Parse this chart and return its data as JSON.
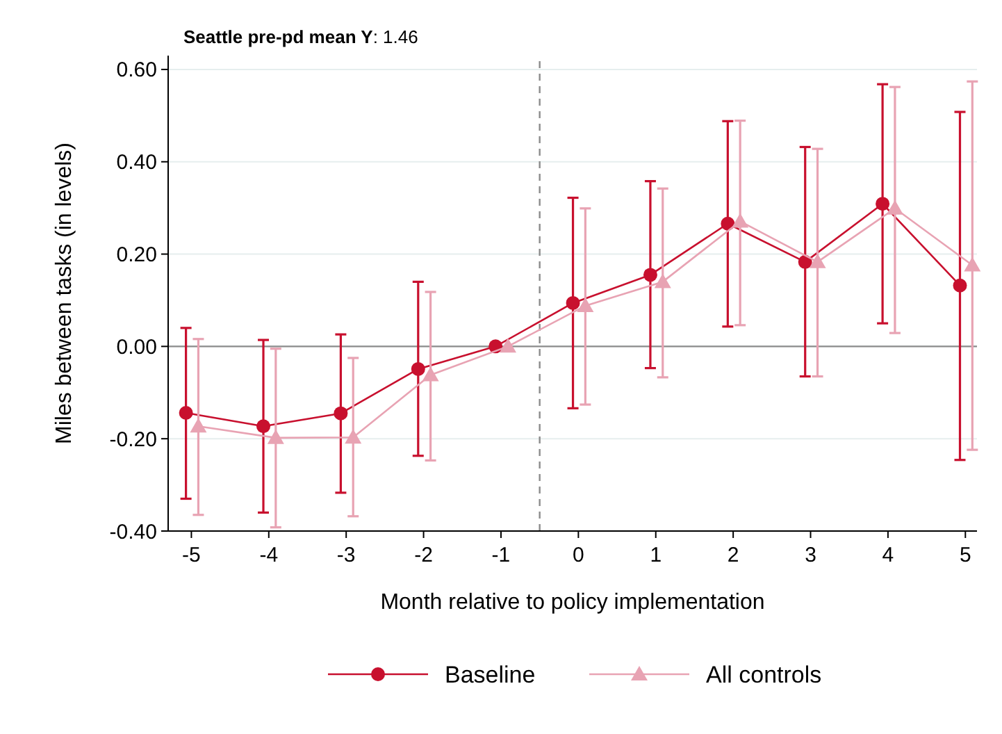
{
  "chart_data": {
    "type": "line",
    "title": "Seattle pre-pd mean Y: 1.46",
    "xlabel": "Month relative to policy implementation",
    "ylabel": "Miles between tasks (in levels)",
    "xlim": [
      -5.3,
      5.15
    ],
    "xticks": [
      -5,
      -4,
      -3,
      -2,
      -1,
      0,
      1,
      2,
      3,
      4,
      5
    ],
    "ylim": [
      -0.4,
      0.63
    ],
    "yticks": [
      {
        "value": -0.4,
        "label": "-0.40"
      },
      {
        "value": -0.2,
        "label": "-0.20"
      },
      {
        "value": 0,
        "label": "0.00"
      },
      {
        "value": 0.2,
        "label": "0.20"
      },
      {
        "value": 0.4,
        "label": "0.40"
      },
      {
        "value": 0.6,
        "label": "0.60"
      }
    ],
    "grid": "y",
    "legend": "bottom",
    "line_style": "solid",
    "ref_lines": [
      {
        "axis": "x",
        "value": -0.5,
        "color": "#8c8c8c",
        "line_style": "dashed"
      },
      {
        "axis": "y",
        "value": 0,
        "color": "#8c8c8c",
        "line_style": "solid"
      }
    ],
    "series": [
      {
        "name": "Baseline",
        "color": "#c8102e",
        "marker": "circle",
        "x": [
          -5.07,
          -4.07,
          -3.07,
          -2.07,
          -1.07,
          -0.07,
          0.93,
          1.93,
          2.93,
          3.93,
          4.93
        ],
        "values": [
          -0.144,
          -0.173,
          -0.145,
          -0.049,
          0,
          0.094,
          0.155,
          0.266,
          0.183,
          0.309,
          0.132
        ],
        "errors": [
          [
            -0.33,
            0.04
          ],
          [
            -0.36,
            0.014
          ],
          [
            -0.317,
            0.026
          ],
          [
            -0.237,
            0.14
          ],
          null,
          [
            -0.134,
            0.322
          ],
          [
            -0.047,
            0.358
          ],
          [
            0.043,
            0.488
          ],
          [
            -0.065,
            0.432
          ],
          [
            0.05,
            0.568
          ],
          [
            -0.246,
            0.508
          ]
        ]
      },
      {
        "name": "All controls",
        "color": "#e8a3b3",
        "marker": "triangle",
        "x": [
          -4.91,
          -3.91,
          -2.91,
          -1.91,
          -0.91,
          0.09,
          1.09,
          2.09,
          3.09,
          4.09,
          5.09
        ],
        "values": [
          -0.173,
          -0.198,
          -0.197,
          -0.062,
          0,
          0.088,
          0.14,
          0.271,
          0.183,
          0.299,
          0.176
        ],
        "errors": [
          [
            -0.365,
            0.016
          ],
          [
            -0.392,
            -0.005
          ],
          [
            -0.368,
            -0.025
          ],
          [
            -0.247,
            0.118
          ],
          null,
          [
            -0.126,
            0.299
          ],
          [
            -0.067,
            0.342
          ],
          [
            0.046,
            0.489
          ],
          [
            -0.065,
            0.428
          ],
          [
            0.029,
            0.562
          ],
          [
            -0.224,
            0.574
          ]
        ]
      }
    ]
  }
}
